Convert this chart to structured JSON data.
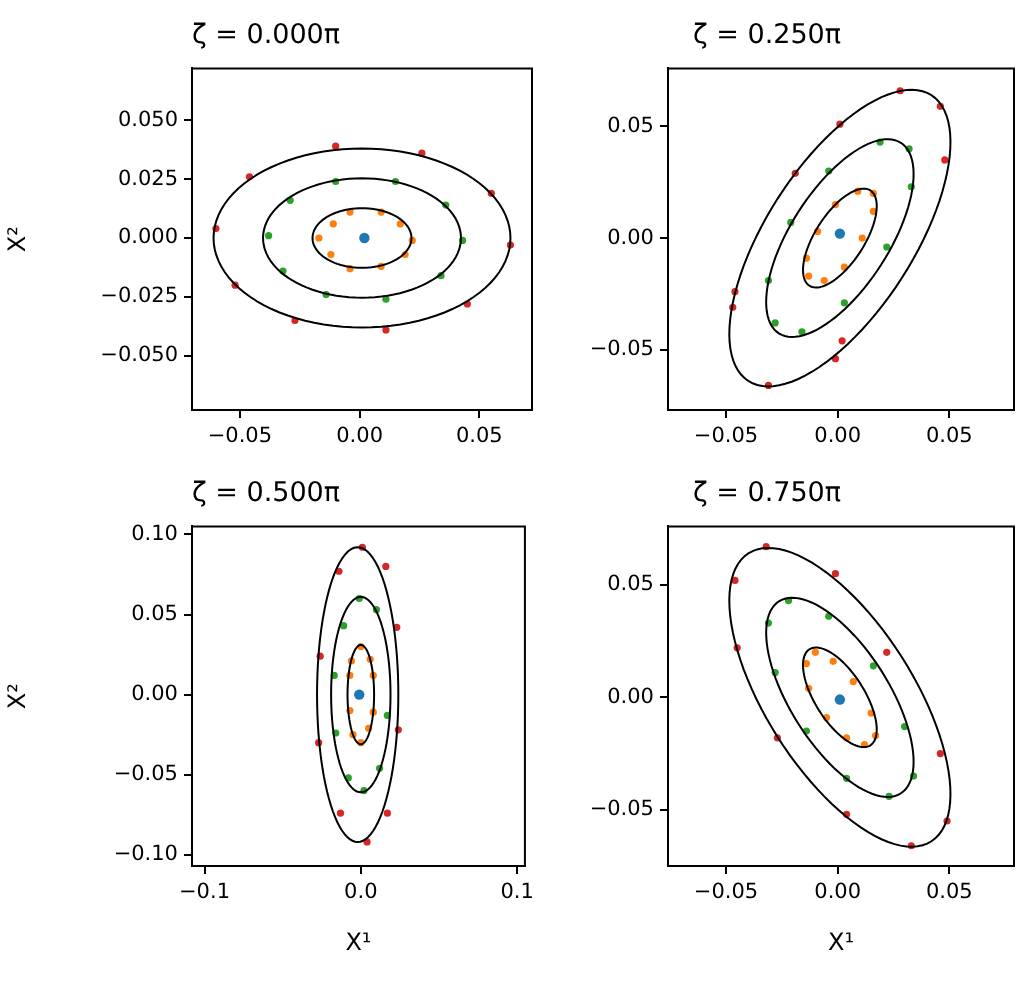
{
  "chart_data": [
    {
      "type": "scatter",
      "title": "ζ = 0.000π",
      "ylabel": "X²",
      "xlim": [
        -0.07,
        0.072
      ],
      "ylim": [
        -0.073,
        0.072
      ],
      "xticks": [
        {
          "value": -0.05,
          "label": "−0.05"
        },
        {
          "value": 0,
          "label": "0.00"
        },
        {
          "value": 0.05,
          "label": "0.05"
        }
      ],
      "yticks": [
        {
          "value": -0.05,
          "label": "−0.050"
        },
        {
          "value": -0.025,
          "label": "−0.025"
        },
        {
          "value": 0,
          "label": "0.000"
        },
        {
          "value": 0.025,
          "label": "0.025"
        },
        {
          "value": 0.05,
          "label": "0.050"
        }
      ],
      "series": [
        {
          "type": "scatter",
          "marker": "circle",
          "color": "#1f77b4",
          "x": [
            0.002
          ],
          "values": [
            0
          ]
        },
        {
          "type": "scatter",
          "marker": "circle",
          "color": "#ff7f0e",
          "x": [
            -0.004,
            0.009,
            -0.011,
            0.017,
            -0.017,
            0.022,
            -0.012,
            0.019,
            -0.004,
            0.009
          ],
          "values": [
            0.011,
            0.011,
            0.006,
            0.006,
            0,
            -0.001,
            -0.007,
            -0.007,
            -0.013,
            -0.012
          ]
        },
        {
          "type": "scatter",
          "marker": "circle",
          "color": "#2ca02c",
          "x": [
            -0.01,
            0.015,
            -0.029,
            0.036,
            -0.038,
            0.043,
            -0.032,
            0.034,
            -0.014,
            0.011
          ],
          "values": [
            0.024,
            0.024,
            0.016,
            0.014,
            0.001,
            -0.001,
            -0.014,
            -0.016,
            -0.024,
            -0.026
          ]
        },
        {
          "type": "scatter",
          "marker": "circle",
          "color": "#d62728",
          "x": [
            -0.01,
            0.026,
            -0.046,
            0.055,
            -0.06,
            0.063,
            -0.052,
            0.045,
            -0.027,
            0.011
          ],
          "values": [
            0.039,
            0.036,
            0.026,
            0.019,
            0.004,
            -0.003,
            -0.02,
            -0.028,
            -0.035,
            -0.039
          ]
        }
      ]
    },
    {
      "type": "scatter",
      "title": "ζ = 0.250π",
      "xlim": [
        -0.076,
        0.079
      ],
      "ylim": [
        -0.077,
        0.076
      ],
      "xticks": [
        {
          "value": -0.05,
          "label": "−0.05"
        },
        {
          "value": 0,
          "label": "0.00"
        },
        {
          "value": 0.05,
          "label": "0.05"
        }
      ],
      "yticks": [
        {
          "value": -0.05,
          "label": "−0.05"
        },
        {
          "value": 0,
          "label": "0.00"
        },
        {
          "value": 0.05,
          "label": "0.05"
        }
      ],
      "series": [
        {
          "type": "scatter",
          "marker": "circle",
          "color": "#1f77b4",
          "x": [
            0.001
          ],
          "values": [
            0.002
          ]
        },
        {
          "type": "scatter",
          "marker": "circle",
          "color": "#ff7f0e",
          "x": [
            0.009,
            0.016,
            -0.001,
            0.016,
            -0.009,
            0.011,
            -0.014,
            0.003,
            -0.006,
            -0.013
          ],
          "values": [
            0.021,
            0.02,
            0.015,
            0.012,
            0.003,
            0,
            -0.009,
            -0.013,
            -0.019,
            -0.017
          ]
        },
        {
          "type": "scatter",
          "marker": "circle",
          "color": "#2ca02c",
          "x": [
            0.019,
            0.032,
            -0.004,
            0.033,
            -0.021,
            0.022,
            -0.031,
            0.003,
            -0.028,
            -0.016
          ],
          "values": [
            0.043,
            0.04,
            0.03,
            0.023,
            0.007,
            -0.004,
            -0.019,
            -0.029,
            -0.038,
            -0.042
          ]
        },
        {
          "type": "scatter",
          "marker": "circle",
          "color": "#d62728",
          "x": [
            0.028,
            0.046,
            0.001,
            0.048,
            -0.019,
            -0.046,
            0.002,
            -0.031,
            -0.047,
            -0.001
          ],
          "values": [
            0.066,
            0.059,
            0.051,
            0.035,
            0.029,
            -0.024,
            -0.046,
            -0.066,
            -0.031,
            -0.054
          ]
        }
      ]
    },
    {
      "type": "scatter",
      "title": "ζ = 0.500π",
      "xlabel": "X¹",
      "ylabel": "X²",
      "xlim": [
        -0.108,
        0.105
      ],
      "ylim": [
        -0.107,
        0.105
      ],
      "xticks": [
        {
          "value": -0.1,
          "label": "−0.1"
        },
        {
          "value": 0,
          "label": "0.0"
        },
        {
          "value": 0.1,
          "label": "0.1"
        }
      ],
      "yticks": [
        {
          "value": -0.1,
          "label": "−0.10"
        },
        {
          "value": -0.05,
          "label": "−0.05"
        },
        {
          "value": 0,
          "label": "0.00"
        },
        {
          "value": 0.05,
          "label": "0.05"
        },
        {
          "value": 0.1,
          "label": "0.10"
        }
      ],
      "series": [
        {
          "type": "scatter",
          "marker": "circle",
          "color": "#1f77b4",
          "x": [
            -0.001
          ],
          "values": [
            0
          ]
        },
        {
          "type": "scatter",
          "marker": "circle",
          "color": "#ff7f0e",
          "x": [
            0,
            -0.006,
            0.006,
            -0.007,
            0.008,
            0.008,
            -0.007,
            -0.005,
            0.005,
            0
          ],
          "values": [
            0.03,
            0.021,
            0.022,
            0.012,
            0.012,
            -0.011,
            -0.01,
            -0.025,
            -0.021,
            -0.03
          ]
        },
        {
          "type": "scatter",
          "marker": "circle",
          "color": "#2ca02c",
          "x": [
            -0.001,
            -0.011,
            0.01,
            -0.017,
            0.017,
            -0.016,
            -0.008,
            0.012,
            0.002
          ],
          "values": [
            0.06,
            0.043,
            0.053,
            0.012,
            -0.013,
            -0.024,
            -0.052,
            -0.046,
            -0.06
          ]
        },
        {
          "type": "scatter",
          "marker": "circle",
          "color": "#d62728",
          "x": [
            0.001,
            0.016,
            -0.014,
            -0.026,
            0.023,
            0.024,
            -0.027,
            0.017,
            -0.013,
            0.004
          ],
          "values": [
            0.092,
            0.08,
            0.077,
            0.024,
            0.042,
            -0.022,
            -0.03,
            -0.074,
            -0.074,
            -0.092
          ]
        }
      ]
    },
    {
      "type": "scatter",
      "title": "ζ = 0.750π",
      "xlabel": "X¹",
      "xlim": [
        -0.076,
        0.079
      ],
      "ylim": [
        -0.075,
        0.076
      ],
      "xticks": [
        {
          "value": -0.05,
          "label": "−0.05"
        },
        {
          "value": 0,
          "label": "0.00"
        },
        {
          "value": 0.05,
          "label": "0.05"
        }
      ],
      "yticks": [
        {
          "value": -0.05,
          "label": "−0.05"
        },
        {
          "value": 0,
          "label": "0.00"
        },
        {
          "value": 0.05,
          "label": "0.05"
        }
      ],
      "series": [
        {
          "type": "scatter",
          "marker": "circle",
          "color": "#1f77b4",
          "x": [
            0.001
          ],
          "values": [
            -0.001
          ]
        },
        {
          "type": "scatter",
          "marker": "circle",
          "color": "#ff7f0e",
          "x": [
            -0.01,
            -0.002,
            -0.014,
            0.007,
            -0.013,
            0.015,
            -0.005,
            0.017,
            0.004,
            0.012
          ],
          "values": [
            0.02,
            0.016,
            0.015,
            0.007,
            0.004,
            -0.007,
            -0.009,
            -0.017,
            -0.018,
            -0.021
          ]
        },
        {
          "type": "scatter",
          "marker": "circle",
          "color": "#2ca02c",
          "x": [
            -0.022,
            -0.031,
            -0.004,
            -0.028,
            0.016,
            -0.014,
            0.03,
            0.004,
            0.034,
            0.023
          ],
          "values": [
            0.043,
            0.033,
            0.036,
            0.011,
            0.014,
            -0.015,
            -0.013,
            -0.036,
            -0.035,
            -0.044
          ]
        },
        {
          "type": "scatter",
          "marker": "circle",
          "color": "#d62728",
          "x": [
            -0.032,
            -0.046,
            -0.001,
            -0.045,
            0.022,
            -0.027,
            0.046,
            0.004,
            0.049,
            0.033
          ],
          "values": [
            0.067,
            0.052,
            0.055,
            0.022,
            0.02,
            -0.018,
            -0.025,
            -0.052,
            -0.055,
            -0.066
          ]
        }
      ]
    }
  ]
}
